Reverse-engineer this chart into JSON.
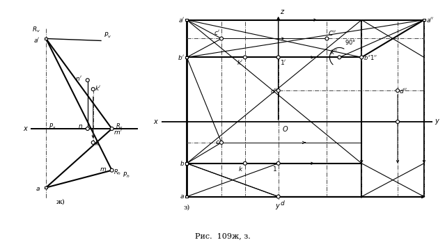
{
  "fig_width": 6.39,
  "fig_height": 3.55,
  "dpi": 100,
  "bg_color": "#ffffff",
  "caption": "Рис. 109ж, з."
}
